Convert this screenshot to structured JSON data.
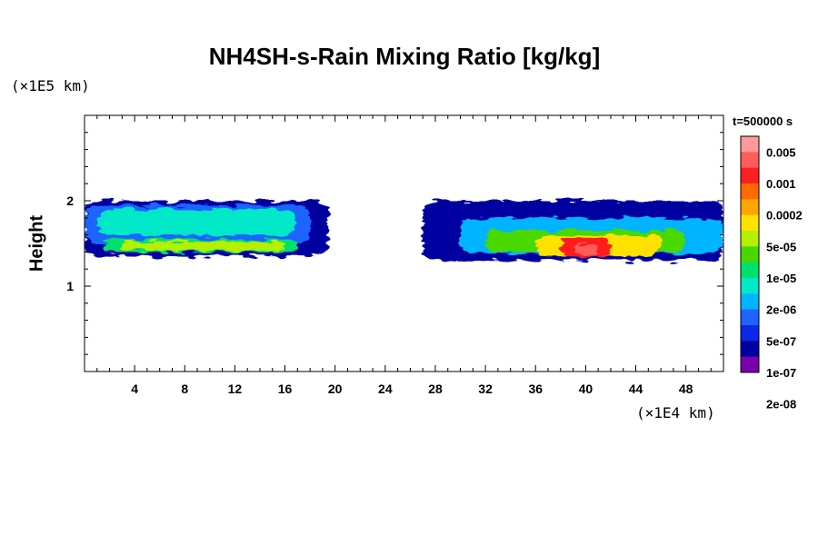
{
  "chart_data": {
    "type": "heatmap",
    "title": "NH4SH-s-Rain Mixing Ratio [kg/kg]",
    "ylabel": "Height",
    "xlabel": "",
    "x_unit": "(×1E4 km)",
    "y_unit": "(×1E5 km)",
    "time_label": "t=500000 s",
    "xlim": [
      0,
      51
    ],
    "ylim": [
      0,
      3
    ],
    "x_ticks": [
      4,
      8,
      12,
      16,
      20,
      24,
      28,
      32,
      36,
      40,
      44,
      48
    ],
    "y_ticks": [
      1,
      2
    ],
    "colorbar": {
      "labels": [
        "0.005",
        "0.001",
        "0.0002",
        "5e-05",
        "1e-05",
        "2e-06",
        "5e-07",
        "1e-07",
        "2e-08"
      ],
      "colors": [
        "#ff9a9a",
        "#ff5c5c",
        "#ff1f1f",
        "#ff6a00",
        "#ffa500",
        "#ffe100",
        "#b4f000",
        "#48d800",
        "#00e070",
        "#00e8c8",
        "#00b4ff",
        "#1e64ff",
        "#0a28e6",
        "#0000a0",
        "#7a00aa"
      ]
    },
    "regions": [
      {
        "level": 1,
        "x": [
          0,
          19.5
        ],
        "y": [
          1.35,
          2.0
        ]
      },
      {
        "level": 3,
        "x": [
          0,
          18
        ],
        "y": [
          1.5,
          1.95
        ]
      },
      {
        "level": 5,
        "x": [
          1,
          17
        ],
        "y": [
          1.6,
          1.9
        ]
      },
      {
        "level": 6,
        "x": [
          1.5,
          17
        ],
        "y": [
          1.4,
          1.55
        ]
      },
      {
        "level": 8,
        "x": [
          3,
          16
        ],
        "y": [
          1.42,
          1.52
        ]
      },
      {
        "level": 1,
        "x": [
          27,
          51
        ],
        "y": [
          1.3,
          2.0
        ]
      },
      {
        "level": 4,
        "x": [
          30,
          51
        ],
        "y": [
          1.38,
          1.8
        ]
      },
      {
        "level": 7,
        "x": [
          32,
          48
        ],
        "y": [
          1.4,
          1.65
        ]
      },
      {
        "level": 9,
        "x": [
          36,
          46
        ],
        "y": [
          1.35,
          1.6
        ]
      },
      {
        "level": 12,
        "x": [
          38,
          42
        ],
        "y": [
          1.35,
          1.55
        ]
      },
      {
        "level": 13,
        "x": [
          39,
          41
        ],
        "y": [
          1.38,
          1.5
        ]
      }
    ]
  }
}
